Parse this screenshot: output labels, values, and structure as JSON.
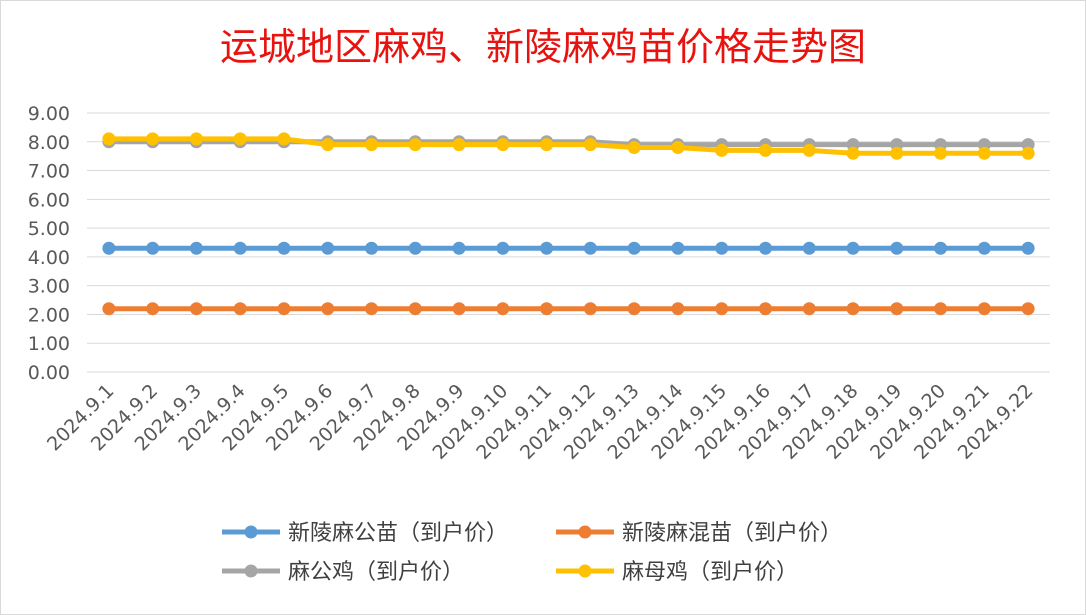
{
  "chart_data": {
    "type": "line",
    "title": "运城地区麻鸡、新陵麻鸡苗价格走势图",
    "xlabel": "",
    "ylabel": "",
    "ylim": [
      0,
      9
    ],
    "ytick_step": 1,
    "ytick_labels": [
      "0.00",
      "1.00",
      "2.00",
      "3.00",
      "4.00",
      "5.00",
      "6.00",
      "7.00",
      "8.00",
      "9.00"
    ],
    "grid": true,
    "legend_position": "bottom",
    "title_color": "#e8130f",
    "categories": [
      "2024.9.1",
      "2024.9.2",
      "2024.9.3",
      "2024.9.4",
      "2024.9.5",
      "2024.9.6",
      "2024.9.7",
      "2024.9.8",
      "2024.9.9",
      "2024.9.10",
      "2024.9.11",
      "2024.9.12",
      "2024.9.13",
      "2024.9.14",
      "2024.9.15",
      "2024.9.16",
      "2024.9.17",
      "2024.9.18",
      "2024.9.19",
      "2024.9.20",
      "2024.9.21",
      "2024.9.22"
    ],
    "series": [
      {
        "name": "新陵麻公苗（到户价）",
        "color": "#5b9bd5",
        "values": [
          4.3,
          4.3,
          4.3,
          4.3,
          4.3,
          4.3,
          4.3,
          4.3,
          4.3,
          4.3,
          4.3,
          4.3,
          4.3,
          4.3,
          4.3,
          4.3,
          4.3,
          4.3,
          4.3,
          4.3,
          4.3,
          4.3
        ]
      },
      {
        "name": "新陵麻混苗（到户价）",
        "color": "#ed7d31",
        "values": [
          2.2,
          2.2,
          2.2,
          2.2,
          2.2,
          2.2,
          2.2,
          2.2,
          2.2,
          2.2,
          2.2,
          2.2,
          2.2,
          2.2,
          2.2,
          2.2,
          2.2,
          2.2,
          2.2,
          2.2,
          2.2,
          2.2
        ]
      },
      {
        "name": "麻公鸡（到户价）",
        "color": "#a5a5a5",
        "values": [
          8.0,
          8.0,
          8.0,
          8.0,
          8.0,
          8.0,
          8.0,
          8.0,
          8.0,
          8.0,
          8.0,
          8.0,
          7.9,
          7.9,
          7.9,
          7.9,
          7.9,
          7.9,
          7.9,
          7.9,
          7.9,
          7.9
        ]
      },
      {
        "name": "麻母鸡（到户价）",
        "color": "#ffc000",
        "values": [
          8.1,
          8.1,
          8.1,
          8.1,
          8.1,
          7.9,
          7.9,
          7.9,
          7.9,
          7.9,
          7.9,
          7.9,
          7.8,
          7.8,
          7.7,
          7.7,
          7.7,
          7.6,
          7.6,
          7.6,
          7.6,
          7.6
        ]
      }
    ]
  }
}
